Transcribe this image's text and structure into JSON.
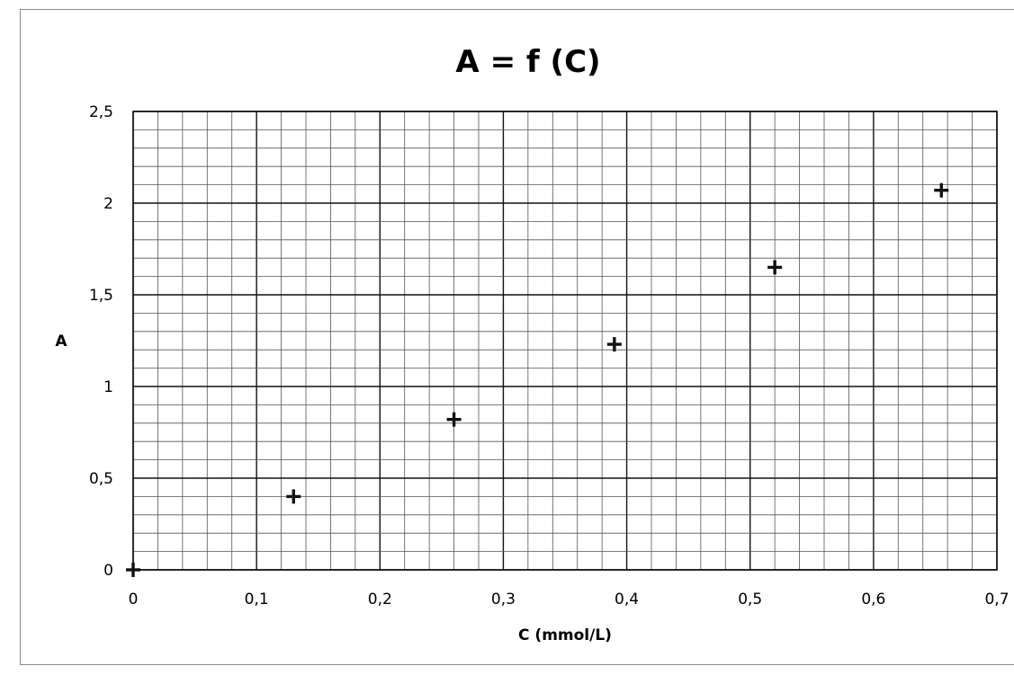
{
  "chart_data": {
    "type": "scatter",
    "title": "A = f (C)",
    "xlabel": "C (mmol/L)",
    "ylabel": "A",
    "xlim": [
      0,
      0.7
    ],
    "ylim": [
      0,
      2.5
    ],
    "x_ticks": [
      "0",
      "0,1",
      "0,2",
      "0,3",
      "0,4",
      "0,5",
      "0,6",
      "0,7"
    ],
    "y_ticks": [
      "0",
      "0,5",
      "1",
      "1,5",
      "2",
      "2,5"
    ],
    "grid": true,
    "legend": "none",
    "series": [
      {
        "x": [
          0,
          0.13,
          0.26,
          0.39,
          0.52,
          0.655
        ],
        "y": [
          0,
          0.4,
          0.82,
          1.23,
          1.65,
          2.07
        ]
      }
    ]
  }
}
